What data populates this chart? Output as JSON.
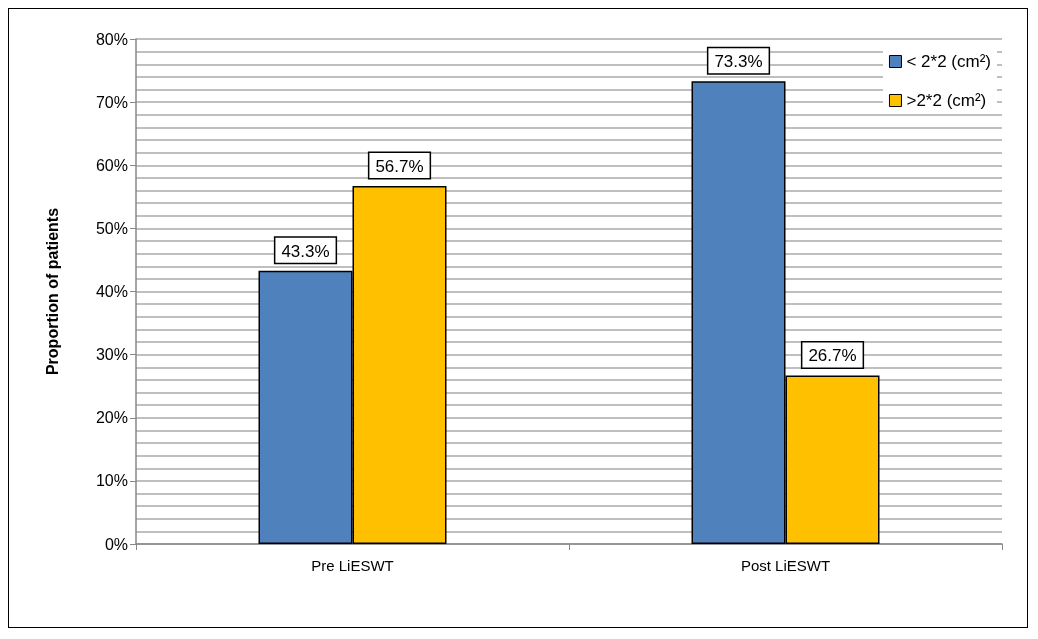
{
  "chart_data": {
    "type": "bar",
    "ylabel": "Proportion of patients",
    "categories": [
      "Pre LiESWT",
      "Post LiESWT"
    ],
    "series": [
      {
        "name": "< 2*2 (cm²)",
        "color": "#4f81bd",
        "values": [
          43.3,
          73.3
        ],
        "value_labels": [
          "43.3%",
          "73.3%"
        ]
      },
      {
        "name": ">2*2 (cm²)",
        "color": "#ffc000",
        "values": [
          56.7,
          26.7
        ],
        "value_labels": [
          "56.7%",
          "26.7%"
        ]
      }
    ],
    "ylim": [
      0,
      80
    ],
    "yticks": [
      {
        "value": 0,
        "label": "0%"
      },
      {
        "value": 10,
        "label": "10%"
      },
      {
        "value": 20,
        "label": "20%"
      },
      {
        "value": 30,
        "label": "30%"
      },
      {
        "value": 40,
        "label": "40%"
      },
      {
        "value": 50,
        "label": "50%"
      },
      {
        "value": 60,
        "label": "60%"
      },
      {
        "value": 70,
        "label": "70%"
      },
      {
        "value": 80,
        "label": "80%"
      }
    ],
    "grid": true,
    "legend": "top right"
  }
}
